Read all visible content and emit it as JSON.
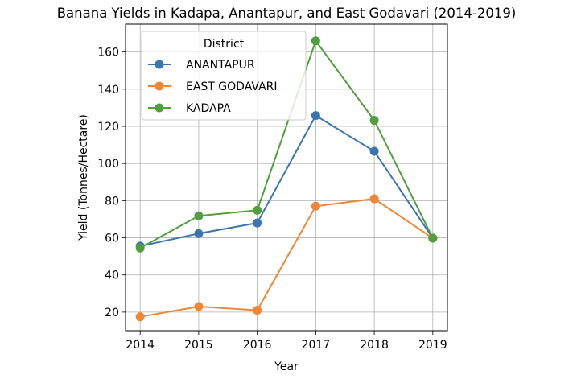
{
  "chart_data": {
    "type": "line",
    "title": "Banana Yields in Kadapa, Anantapur, and East Godavari (2014-2019)",
    "xlabel": "Year",
    "ylabel": "Yield (Tonnes/Hectare)",
    "x": [
      2014,
      2015,
      2016,
      2017,
      2018,
      2019
    ],
    "x_tick_labels": [
      "2014",
      "2015",
      "2016",
      "2017",
      "2018",
      "2019"
    ],
    "xlim": [
      2013.75,
      2019.25
    ],
    "ylim": [
      10,
      175
    ],
    "y_ticks": [
      20,
      40,
      60,
      80,
      100,
      120,
      140,
      160
    ],
    "grid": true,
    "legend": {
      "title": "District",
      "position": "upper left"
    },
    "series": [
      {
        "name": "ANANTAPUR",
        "color": "#3b75af",
        "values": [
          55.5,
          62.3,
          68.0,
          125.8,
          106.6,
          59.8
        ]
      },
      {
        "name": "EAST GODAVARI",
        "color": "#ef8636",
        "values": [
          17.5,
          23.0,
          21.0,
          77.0,
          81.0,
          59.8
        ]
      },
      {
        "name": "KADAPA",
        "color": "#519e3e",
        "values": [
          54.5,
          71.8,
          74.8,
          166.0,
          123.2,
          59.8
        ]
      }
    ]
  }
}
